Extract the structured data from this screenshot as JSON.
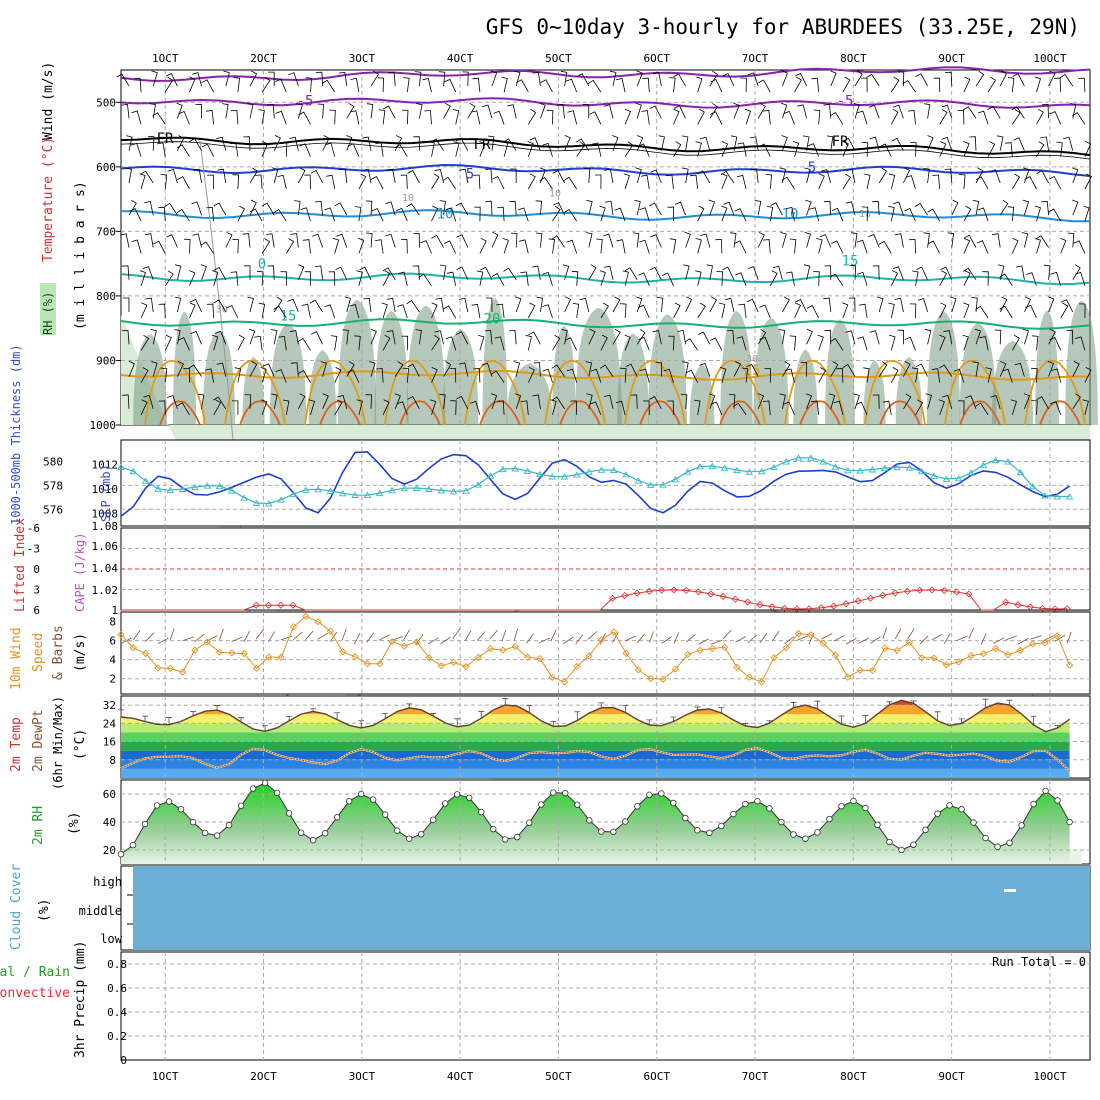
{
  "title": "GFS 0~10day 3-hourly for ABURDEES (33.25E, 29N)",
  "date_labels": [
    "1OCT",
    "2OCT",
    "3OCT",
    "4OCT",
    "5OCT",
    "6OCT",
    "7OCT",
    "8OCT",
    "9OCT",
    "10OCT"
  ],
  "colors": {
    "grid": "#aaaaaa",
    "wind_barb": "#000000",
    "temp_minus5": "#8a1fb0",
    "temp_fr": "#000000",
    "temp_5": "#1f3fcc",
    "temp_10": "#1c8fdc",
    "temp_15": "#1fb3a8",
    "temp_20": "#18b070",
    "temp_25": "#e09a1a",
    "temp_30": "#e0601a",
    "rh_fill": "#d8ecd8",
    "rh_dark": "#7a9a80",
    "thickness": "#1a3fd0",
    "slp": "#36b8c8",
    "lifted_index": "#e03030",
    "wind10m": "#e89020",
    "dewpoint": "#8a5030",
    "rh2m": "#22c022",
    "cloud": "#6baed6",
    "precip_total": "#22c022",
    "precip_conv": "#e03030"
  },
  "panels": {
    "upper_air": {
      "ylabels": {
        "rh": "RH (%)",
        "temperature": "Temperature (°C)",
        "wind": "Wind (m/s)",
        "units": "(m i l l i b a r s)"
      },
      "yticks": [
        "500",
        "600",
        "700",
        "800",
        "900",
        "1000"
      ],
      "contour_labels": [
        "-5",
        "-5",
        "FR",
        "FR",
        "FR",
        "5",
        "5",
        "10",
        "10",
        "15",
        "0",
        "15",
        "20",
        "25",
        "10",
        "10",
        "30",
        "30",
        "10"
      ]
    },
    "thickness_slp": {
      "ylabels": {
        "thickness": "1000-500mb Thickness (dm)",
        "slp": "SLP (mb)"
      },
      "left_ticks": [
        "580",
        "578",
        "576"
      ],
      "right_ticks": [
        "1012",
        "1010",
        "1008",
        "1.08"
      ]
    },
    "stability": {
      "ylabels": {
        "li": "Lifted Index",
        "cape": "CAPE (J/kg)"
      },
      "left_ticks": [
        "-6",
        "-3",
        "0",
        "3",
        "6"
      ],
      "right_ticks": [
        "1.06",
        "1.04",
        "1.02",
        "1"
      ]
    },
    "wind10m": {
      "ylabels": {
        "a": "10m Wind",
        "b": "Speed",
        "c": "& Barbs",
        "d": "(m/s)"
      },
      "yticks": [
        "8",
        "6",
        "4",
        "2"
      ]
    },
    "temp2m": {
      "ylabels": {
        "a": "2m Temp",
        "b": "2m DewPt",
        "c": "(6hr Min/Max)",
        "d": "(°C)"
      },
      "yticks": [
        "32",
        "24",
        "16",
        "8"
      ]
    },
    "rh2m": {
      "ylabels": {
        "a": "2m RH",
        "b": "(%)"
      },
      "yticks": [
        "60",
        "40",
        "20"
      ]
    },
    "cloud": {
      "ylabels": {
        "a": "Cloud Cover",
        "b": "(%)"
      },
      "levels": [
        "high",
        "middle",
        "low"
      ]
    },
    "precip": {
      "ylabels": {
        "a": "Total / Rain",
        "b": "Convective",
        "c": "3hr Precip (mm)"
      },
      "yticks": [
        "0.8",
        "0.6",
        "0.4",
        "0.2",
        "0"
      ],
      "run_total": "Run Total = 0"
    }
  },
  "chart_data": {
    "type": "line",
    "title": "GFS 0~10day 3-hourly for ABURDEES (33.25E, 29N)",
    "x_range": [
      "0.5OCT",
      "10.2OCT"
    ],
    "series": [
      {
        "name": "1000-500mb Thickness (dm)",
        "x_days": [
          0.55,
          1.0,
          1.5,
          2.0,
          2.5,
          3.0,
          3.5,
          4.0,
          4.5,
          5.0,
          5.5,
          6.0,
          6.5,
          7.0,
          7.5,
          8.0,
          8.5,
          9.0,
          9.5,
          10.0,
          10.2
        ],
        "values": [
          575.8,
          578.6,
          577.0,
          579.2,
          575.9,
          580.6,
          578.2,
          581.0,
          576.8,
          579.8,
          578.6,
          576.0,
          578.0,
          577.2,
          579.6,
          578.4,
          579.6,
          578.1,
          579.2,
          576.6,
          578.2
        ]
      },
      {
        "name": "SLP (mb)",
        "x_days": [
          0.55,
          1.0,
          1.5,
          2.0,
          2.5,
          3.0,
          3.5,
          4.0,
          4.5,
          5.0,
          5.5,
          6.0,
          6.5,
          7.0,
          7.5,
          8.0,
          8.5,
          9.0,
          9.5,
          10.0,
          10.2
        ],
        "values": [
          1011.8,
          1009.9,
          1010.3,
          1008.8,
          1010.0,
          1009.5,
          1010.1,
          1009.8,
          1011.7,
          1011.0,
          1011.6,
          1010.3,
          1011.9,
          1011.4,
          1012.6,
          1011.5,
          1011.8,
          1010.8,
          1012.4,
          1009.4,
          1009.4
        ]
      },
      {
        "name": "10m Wind Speed (m/s)",
        "x_days": [
          0.55,
          1.0,
          1.5,
          2.0,
          2.5,
          3.0,
          3.5,
          4.0,
          4.5,
          5.0,
          5.5,
          6.0,
          6.5,
          7.0,
          7.5,
          8.0,
          8.5,
          9.0,
          9.5,
          10.0,
          10.2
        ],
        "values": [
          6.4,
          2.6,
          5.5,
          3.4,
          8.3,
          3.5,
          6.0,
          3.0,
          5.9,
          2.4,
          6.2,
          2.5,
          5.9,
          2.0,
          6.4,
          2.5,
          5.1,
          3.3,
          5.2,
          6.6,
          4.1
        ]
      },
      {
        "name": "2m Temp (°C)",
        "x_days": [
          0.55,
          1.0,
          1.5,
          2.0,
          2.5,
          3.0,
          3.5,
          4.0,
          4.5,
          5.0,
          5.5,
          6.0,
          6.5,
          7.0,
          7.5,
          8.0,
          8.5,
          9.0,
          9.5,
          10.0,
          10.2
        ],
        "values": [
          26.8,
          23.3,
          29.9,
          20.5,
          29.2,
          22.0,
          30.8,
          22.4,
          32.2,
          22.4,
          31.2,
          22.8,
          30.4,
          22.1,
          32.0,
          22.3,
          34.1,
          23.0,
          33.0,
          20.1,
          25.8
        ]
      },
      {
        "name": "2m DewPt (°C)",
        "x_days": [
          0.55,
          1.0,
          1.5,
          2.0,
          2.5,
          3.0,
          3.5,
          4.0,
          4.5,
          5.0,
          5.5,
          6.0,
          6.5,
          7.0,
          7.5,
          8.0,
          8.5,
          9.0,
          9.5,
          10.0,
          10.2
        ],
        "values": [
          4.5,
          10.5,
          5.5,
          12.5,
          6.0,
          11.5,
          8.0,
          11.0,
          8.5,
          12.0,
          9.5,
          12.0,
          9.0,
          12.0,
          8.5,
          11.5,
          9.0,
          11.0,
          8.0,
          11.5,
          4.0
        ]
      },
      {
        "name": "2m RH (%)",
        "x_days": [
          0.55,
          1.0,
          1.5,
          2.0,
          2.5,
          3.0,
          3.5,
          4.0,
          4.5,
          5.0,
          5.5,
          6.0,
          6.5,
          7.0,
          7.5,
          8.0,
          8.5,
          9.0,
          9.5,
          10.0,
          10.2
        ],
        "values": [
          17,
          55,
          30,
          68,
          27,
          60,
          28,
          60,
          27,
          62,
          32,
          61,
          32,
          55,
          28,
          55,
          20,
          52,
          22,
          63,
          40
        ]
      },
      {
        "name": "3hr Precip (mm)",
        "x_days": [
          0.5,
          10.2
        ],
        "values": [
          0,
          0
        ]
      }
    ],
    "xlabel": "",
    "ylim_upper_air": [
      450,
      1000
    ],
    "ylim_temp2m": [
      0,
      36
    ],
    "ylim_rh2m": [
      10,
      70
    ],
    "ylim_precip": [
      0,
      0.9
    ],
    "grid": true,
    "legend": "none"
  }
}
